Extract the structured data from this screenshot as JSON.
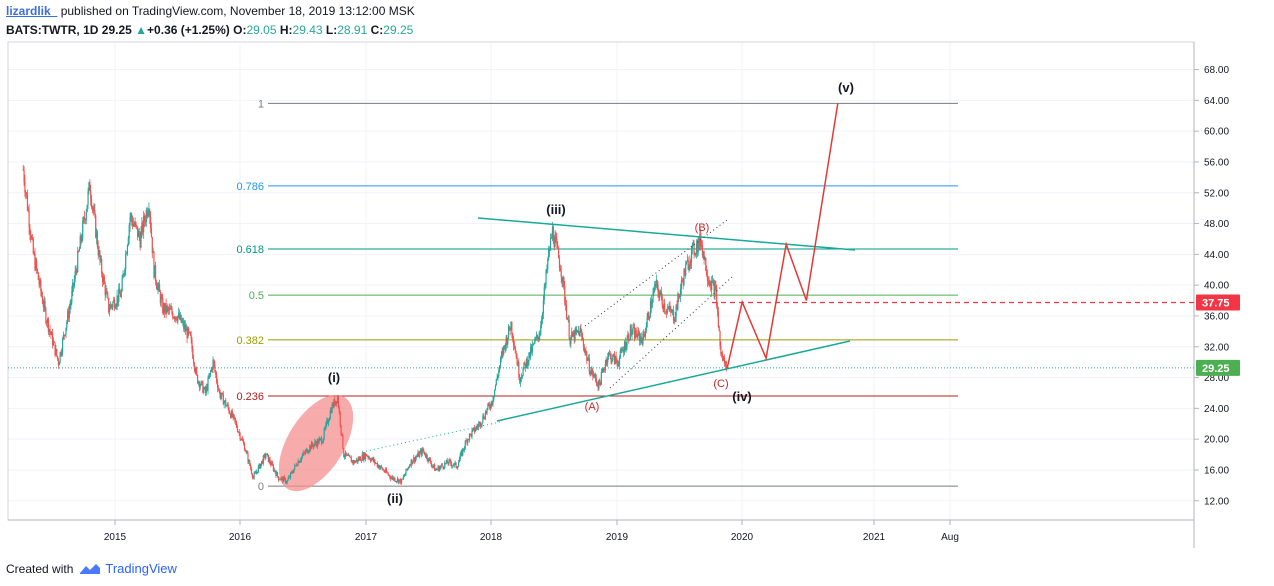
{
  "header": {
    "user": "lizardlik_",
    "published": "published on TradingView.com, November 18, 2019 13:12:00 MSK",
    "symbol": "BATS:TWTR, 1D",
    "last": "29.25",
    "arrow": "▲",
    "change": "+0.36 (+1.25%)",
    "o_label": "O:",
    "o": "29.05",
    "h_label": "H:",
    "h": "29.43",
    "l_label": "L:",
    "l": "28.91",
    "c_label": "C:",
    "c": "29.25"
  },
  "footer": {
    "created": "Created with",
    "brand": "TradingView"
  },
  "colors": {
    "up": "#26a69a",
    "down": "#ef5350",
    "arrow": "#e53935",
    "trend": "#18a999",
    "price_badge": "#4caf50",
    "target_badge": "#f23645"
  },
  "chart_data": {
    "type": "line",
    "y_axis": {
      "ticks": [
        "12.00",
        "16.00",
        "20.00",
        "24.00",
        "28.00",
        "32.00",
        "36.00",
        "40.00",
        "44.00",
        "48.00",
        "52.00",
        "56.00",
        "60.00",
        "64.00",
        "68.00"
      ],
      "range": [
        9.5,
        71.5
      ]
    },
    "x_axis": {
      "ticks": [
        "2015",
        "2016",
        "2017",
        "2018",
        "2019",
        "2020",
        "2021",
        "Aug"
      ]
    },
    "price_series": [
      {
        "x": 2014.27,
        "y": 55
      },
      {
        "x": 2014.35,
        "y": 44
      },
      {
        "x": 2014.45,
        "y": 36
      },
      {
        "x": 2014.55,
        "y": 30
      },
      {
        "x": 2014.65,
        "y": 38
      },
      {
        "x": 2014.75,
        "y": 48
      },
      {
        "x": 2014.8,
        "y": 53
      },
      {
        "x": 2014.88,
        "y": 43
      },
      {
        "x": 2014.95,
        "y": 37
      },
      {
        "x": 2015.05,
        "y": 39
      },
      {
        "x": 2015.12,
        "y": 49
      },
      {
        "x": 2015.2,
        "y": 46
      },
      {
        "x": 2015.27,
        "y": 51
      },
      {
        "x": 2015.31,
        "y": 42
      },
      {
        "x": 2015.38,
        "y": 37
      },
      {
        "x": 2015.5,
        "y": 36
      },
      {
        "x": 2015.6,
        "y": 33
      },
      {
        "x": 2015.65,
        "y": 28
      },
      {
        "x": 2015.72,
        "y": 26
      },
      {
        "x": 2015.78,
        "y": 30
      },
      {
        "x": 2015.83,
        "y": 26
      },
      {
        "x": 2015.9,
        "y": 24
      },
      {
        "x": 2015.96,
        "y": 22
      },
      {
        "x": 2016.03,
        "y": 19
      },
      {
        "x": 2016.1,
        "y": 15
      },
      {
        "x": 2016.2,
        "y": 18
      },
      {
        "x": 2016.3,
        "y": 15
      },
      {
        "x": 2016.37,
        "y": 14.5
      },
      {
        "x": 2016.45,
        "y": 17
      },
      {
        "x": 2016.55,
        "y": 19
      },
      {
        "x": 2016.65,
        "y": 20
      },
      {
        "x": 2016.72,
        "y": 24
      },
      {
        "x": 2016.77,
        "y": 25.5
      },
      {
        "x": 2016.82,
        "y": 18
      },
      {
        "x": 2016.9,
        "y": 17
      },
      {
        "x": 2017.0,
        "y": 18
      },
      {
        "x": 2017.1,
        "y": 16.5
      },
      {
        "x": 2017.2,
        "y": 15
      },
      {
        "x": 2017.28,
        "y": 14.5
      },
      {
        "x": 2017.35,
        "y": 17
      },
      {
        "x": 2017.45,
        "y": 18.5
      },
      {
        "x": 2017.55,
        "y": 16
      },
      {
        "x": 2017.65,
        "y": 17
      },
      {
        "x": 2017.72,
        "y": 16.5
      },
      {
        "x": 2017.8,
        "y": 20
      },
      {
        "x": 2017.9,
        "y": 22
      },
      {
        "x": 2018.0,
        "y": 25
      },
      {
        "x": 2018.08,
        "y": 31
      },
      {
        "x": 2018.15,
        "y": 35
      },
      {
        "x": 2018.22,
        "y": 28
      },
      {
        "x": 2018.3,
        "y": 31
      },
      {
        "x": 2018.38,
        "y": 34
      },
      {
        "x": 2018.45,
        "y": 44
      },
      {
        "x": 2018.48,
        "y": 47
      },
      {
        "x": 2018.55,
        "y": 42
      },
      {
        "x": 2018.62,
        "y": 33
      },
      {
        "x": 2018.7,
        "y": 34
      },
      {
        "x": 2018.78,
        "y": 29
      },
      {
        "x": 2018.85,
        "y": 27
      },
      {
        "x": 2018.92,
        "y": 31
      },
      {
        "x": 2019.0,
        "y": 30
      },
      {
        "x": 2019.1,
        "y": 34
      },
      {
        "x": 2019.2,
        "y": 33
      },
      {
        "x": 2019.3,
        "y": 40
      },
      {
        "x": 2019.38,
        "y": 37
      },
      {
        "x": 2019.45,
        "y": 36
      },
      {
        "x": 2019.52,
        "y": 41
      },
      {
        "x": 2019.58,
        "y": 44
      },
      {
        "x": 2019.66,
        "y": 45.9
      },
      {
        "x": 2019.72,
        "y": 41
      },
      {
        "x": 2019.78,
        "y": 39
      },
      {
        "x": 2019.82,
        "y": 31
      },
      {
        "x": 2019.87,
        "y": 29.25
      }
    ],
    "fib_levels": [
      {
        "ratio": "1",
        "price": 63.6,
        "color": "#787b86"
      },
      {
        "ratio": "0.786",
        "price": 52.9,
        "color": "#2196f3"
      },
      {
        "ratio": "0.618",
        "price": 44.7,
        "color": "#009688"
      },
      {
        "ratio": "0.5",
        "price": 38.7,
        "color": "#4caf50"
      },
      {
        "ratio": "0.382",
        "price": 32.9,
        "color": "#9c9c00"
      },
      {
        "ratio": "0.236",
        "price": 25.6,
        "color": "#b71c1c"
      },
      {
        "ratio": "0",
        "price": 13.9,
        "color": "#787b86"
      }
    ],
    "projection": [
      {
        "x": 2019.87,
        "y": 29.25
      },
      {
        "x": 2019.99,
        "y": 37.8
      },
      {
        "x": 2020.18,
        "y": 30.5
      },
      {
        "x": 2020.34,
        "y": 45.3
      },
      {
        "x": 2020.5,
        "y": 38.0
      },
      {
        "x": 2020.75,
        "y": 63.6
      }
    ],
    "wave_labels": [
      "(i)",
      "(ii)",
      "(iii)",
      "(iv)",
      "(v)"
    ],
    "corrective_labels": [
      "(A)",
      "(B)",
      "(C)"
    ],
    "price_badge": "29.25",
    "target_badge": "37.75"
  }
}
